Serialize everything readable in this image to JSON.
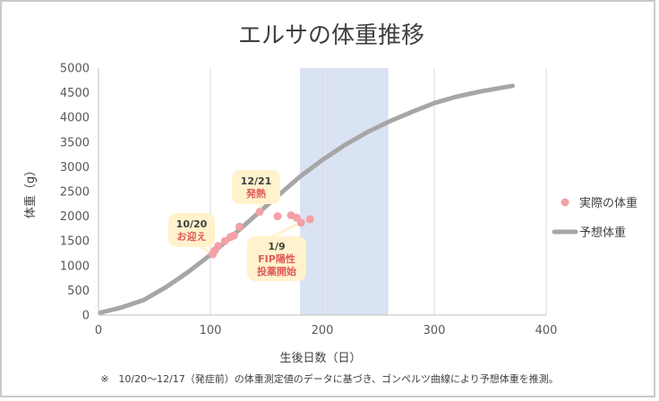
{
  "chart_data": {
    "type": "scatter",
    "title": "エルサの体重推移",
    "xlabel": "生後日数（日）",
    "ylabel": "体重（g）",
    "xlim": [
      0,
      400
    ],
    "ylim": [
      0,
      5000
    ],
    "xticks": [
      0,
      100,
      200,
      300,
      400
    ],
    "yticks": [
      0,
      500,
      1000,
      1500,
      2000,
      2500,
      3000,
      3500,
      4000,
      4500,
      5000
    ],
    "xtick_labels": [
      "0",
      "100",
      "200",
      "300",
      "400"
    ],
    "ytick_labels": [
      "0",
      "500",
      "1000",
      "1500",
      "2000",
      "2500",
      "3000",
      "3500",
      "4000",
      "4500",
      "5000"
    ],
    "grid": "vertical",
    "shaded_x_range": [
      180,
      259
    ],
    "legend_position": "right",
    "series": [
      {
        "name": "実際の体重",
        "kind": "scatter",
        "color": "#f4a0a6",
        "points": [
          [
            102,
            1230
          ],
          [
            104,
            1310
          ],
          [
            107,
            1400
          ],
          [
            113,
            1500
          ],
          [
            118,
            1580
          ],
          [
            121,
            1610
          ],
          [
            126,
            1790
          ],
          [
            144,
            2090
          ],
          [
            160,
            2000
          ],
          [
            172,
            2020
          ],
          [
            177,
            1970
          ],
          [
            181,
            1870
          ],
          [
            189,
            1940
          ]
        ]
      },
      {
        "name": "予想体重",
        "kind": "line",
        "color": "#a6a6a6",
        "points": [
          [
            2,
            50
          ],
          [
            20,
            150
          ],
          [
            40,
            300
          ],
          [
            60,
            560
          ],
          [
            80,
            870
          ],
          [
            100,
            1220
          ],
          [
            120,
            1610
          ],
          [
            140,
            2010
          ],
          [
            160,
            2410
          ],
          [
            180,
            2800
          ],
          [
            200,
            3140
          ],
          [
            220,
            3440
          ],
          [
            240,
            3700
          ],
          [
            260,
            3920
          ],
          [
            280,
            4110
          ],
          [
            300,
            4290
          ],
          [
            320,
            4420
          ],
          [
            340,
            4520
          ],
          [
            360,
            4600
          ],
          [
            370,
            4640
          ]
        ]
      }
    ],
    "annotations": [
      {
        "lines": [
          "10/20",
          "お迎え"
        ],
        "colors": [
          "#404040",
          "#e05a5a"
        ],
        "x": 102,
        "y": 1230
      },
      {
        "lines": [
          "12/21",
          "発熱"
        ],
        "colors": [
          "#404040",
          "#e05a5a"
        ],
        "x": 144,
        "y": 2090
      },
      {
        "lines": [
          "1/9",
          "FIP陽性",
          "投薬開始"
        ],
        "colors": [
          "#404040",
          "#e05a5a",
          "#e05a5a"
        ],
        "x": 181,
        "y": 1870
      }
    ],
    "footnote": "※　10/20～12/17（発症前）の体重測定値のデータに基づき、ゴンペルツ曲線により予想体重を推測。"
  }
}
